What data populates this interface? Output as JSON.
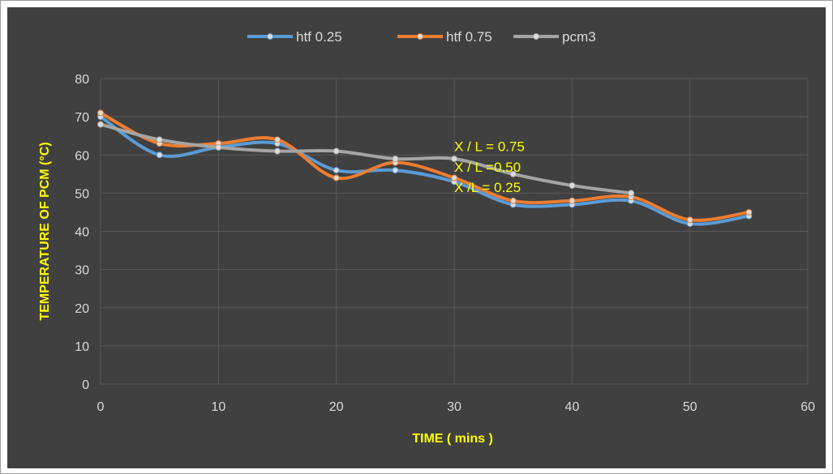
{
  "chart_data": {
    "type": "line",
    "title": "",
    "xlabel": "TIME ( mins )",
    "ylabel": "TEMPERATURE OF PCM (°C)",
    "xlim": [
      0,
      60
    ],
    "ylim": [
      0,
      80
    ],
    "x_ticks": [
      0,
      10,
      20,
      30,
      40,
      50,
      60
    ],
    "y_ticks": [
      0,
      10,
      20,
      30,
      40,
      50,
      60,
      70,
      80
    ],
    "grid": true,
    "smooth": true,
    "legend_position": "top",
    "x": [
      0,
      5,
      10,
      15,
      20,
      25,
      30,
      35,
      40,
      45,
      50,
      55
    ],
    "series": [
      {
        "name": "htf 0.25",
        "color": "#5b9bd5",
        "values": [
          70,
          60,
          62,
          63,
          56,
          56,
          53,
          47,
          47,
          48,
          42,
          44
        ]
      },
      {
        "name": "htf 0.75",
        "color": "#ed7d31",
        "values": [
          71,
          63,
          63,
          64,
          54,
          58,
          54,
          48,
          48,
          49,
          43,
          45
        ]
      },
      {
        "name": "pcm3",
        "color": "#a5a5a5",
        "values": [
          68,
          64,
          62,
          61,
          61,
          59,
          59,
          55,
          52,
          50,
          null,
          null
        ]
      }
    ],
    "annotations": [
      {
        "text": "X / L = 0.75",
        "x": 30,
        "y": 61
      },
      {
        "text": "X / L =0.50",
        "x": 30,
        "y": 55.6
      },
      {
        "text": "X /L = 0.25",
        "x": 30,
        "y": 50.3
      }
    ],
    "colors": {
      "background": "#404040",
      "grid": "#595959",
      "tick_text": "#d9d9d9",
      "axis_title": "#ffff00",
      "annotation": "#ffff00"
    }
  }
}
